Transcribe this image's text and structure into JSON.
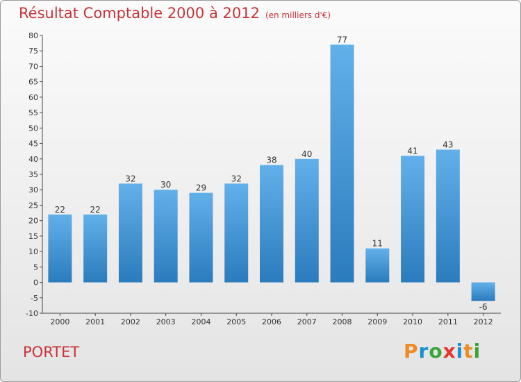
{
  "title": "Résultat Comptable 2000 à 2012",
  "subtitle": "(en milliers d'€)",
  "commune": "PORTET",
  "logo": {
    "letters": [
      "P",
      "r",
      "o",
      "x",
      "i",
      "t",
      "i"
    ],
    "colors": [
      "#f08a24",
      "#1a8fd1",
      "#3aa63a",
      "#e3372f",
      "#1a8fd1",
      "#f08a24",
      "#3aa63a"
    ]
  },
  "chart_data": {
    "type": "bar",
    "title": "Résultat Comptable 2000 à 2012",
    "subtitle": "(en milliers d'€)",
    "categories": [
      "2000",
      "2001",
      "2002",
      "2003",
      "2004",
      "2005",
      "2006",
      "2007",
      "2008",
      "2009",
      "2010",
      "2011",
      "2012"
    ],
    "values": [
      22,
      22,
      32,
      30,
      29,
      32,
      38,
      40,
      77,
      11,
      41,
      43,
      -6
    ],
    "labels": [
      "22",
      "22",
      "32",
      "30",
      "29",
      "32",
      "38",
      "40",
      "77",
      "11",
      "41",
      "43",
      "-6"
    ],
    "ylim": [
      -10,
      80
    ],
    "yticks": [
      -10,
      -5,
      0,
      5,
      10,
      15,
      20,
      25,
      30,
      35,
      40,
      45,
      50,
      55,
      60,
      65,
      70,
      75,
      80
    ],
    "ytick_labels": [
      "-10",
      "-5",
      "0",
      "5",
      "10",
      "15",
      "20",
      "25",
      "30",
      "35",
      "40",
      "45",
      "50",
      "55",
      "60",
      "65",
      "70",
      "75",
      "80"
    ],
    "bar_color": "#4a9ede",
    "grid": false,
    "xlabel": "",
    "ylabel": ""
  }
}
